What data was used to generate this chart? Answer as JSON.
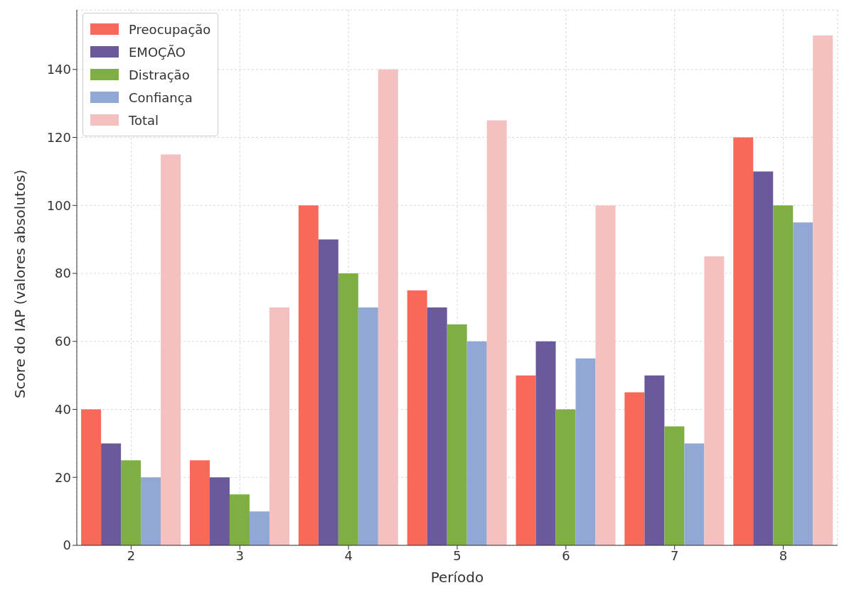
{
  "chart_data": {
    "type": "bar",
    "xlabel": "Período",
    "ylabel": "Score do IAP (valores absolutos)",
    "categories": [
      "2",
      "3",
      "4",
      "5",
      "6",
      "7",
      "8"
    ],
    "series": [
      {
        "name": "Preocupação",
        "color": "#f8695a",
        "values": [
          40,
          25,
          100,
          75,
          50,
          45,
          120
        ]
      },
      {
        "name": "EMOÇÃO",
        "color": "#6a5a9c",
        "values": [
          30,
          20,
          90,
          70,
          60,
          50,
          110
        ]
      },
      {
        "name": "Distração",
        "color": "#7fae45",
        "values": [
          25,
          15,
          80,
          65,
          40,
          35,
          100
        ]
      },
      {
        "name": "Confiança",
        "color": "#91a8d4",
        "values": [
          20,
          10,
          70,
          60,
          55,
          30,
          95
        ]
      },
      {
        "name": "Total",
        "color": "#f5c0c0",
        "values": [
          115,
          70,
          140,
          125,
          100,
          85,
          150
        ]
      }
    ],
    "ylim": [
      0,
      157.5
    ],
    "yticks": [
      0,
      20,
      40,
      60,
      80,
      100,
      120,
      140
    ],
    "grid": true,
    "legend": "top left"
  }
}
